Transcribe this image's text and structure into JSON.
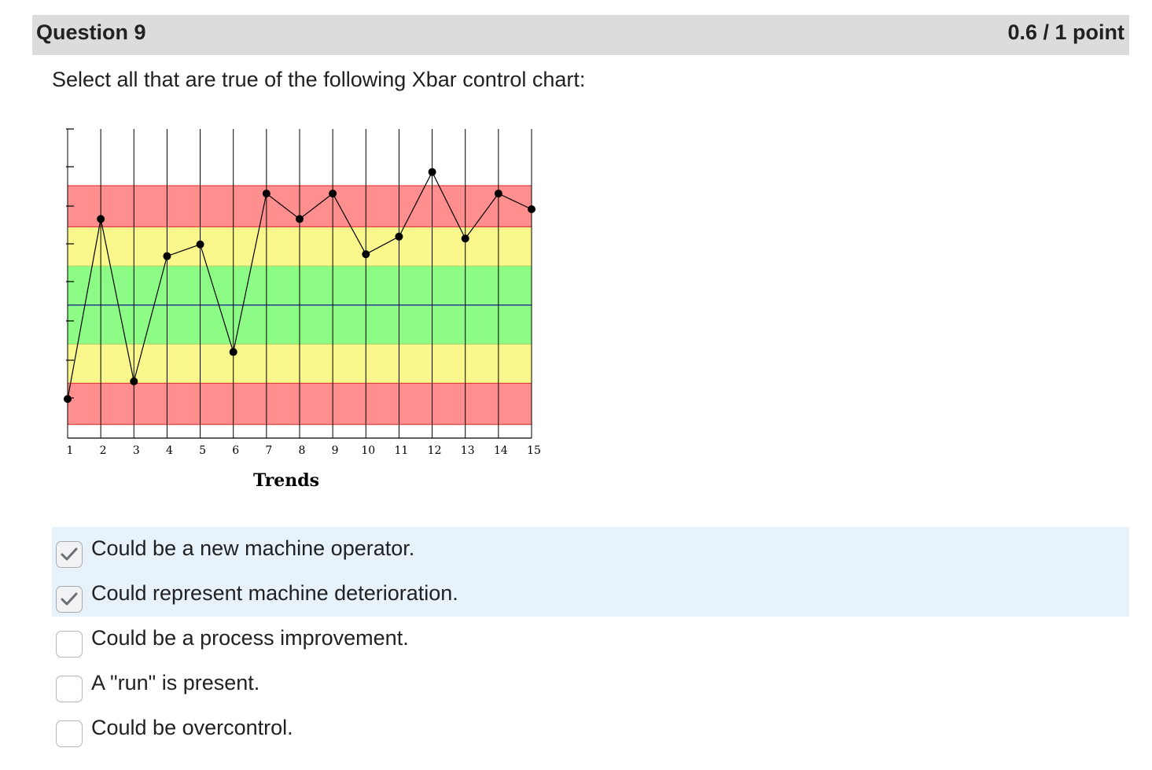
{
  "question": {
    "title": "Question 9",
    "points": "0.6 / 1 point",
    "prompt": "Select all that are true of the following Xbar control chart:"
  },
  "colors": {
    "red_zone": "#ff8e8e",
    "yellow_zone": "#faf88c",
    "green_zone": "#8dfc87",
    "center_line": "#2a3b8f",
    "selected_row": "#e8f2fb",
    "header_bg": "#dcdcdc"
  },
  "chart_data": {
    "type": "line",
    "xlabel": "Trends",
    "categories": [
      "1",
      "2",
      "3",
      "4",
      "5",
      "6",
      "7",
      "8",
      "9",
      "10",
      "11",
      "12",
      "13",
      "14",
      "15"
    ],
    "zones": {
      "center": 0,
      "sigma_1": 1,
      "sigma_2": 2,
      "sigma_3": 3.05
    },
    "ylim": [
      -3.4,
      4.5
    ],
    "values": [
      -2.4,
      2.2,
      -1.95,
      1.25,
      1.55,
      -1.2,
      2.85,
      2.2,
      2.85,
      1.3,
      1.75,
      3.4,
      1.7,
      2.85,
      2.45
    ],
    "grid": "vertical"
  },
  "answers": [
    {
      "label": "Could be a new machine operator.",
      "checked": true
    },
    {
      "label": "Could represent machine deterioration.",
      "checked": true
    },
    {
      "label": "Could be a process improvement.",
      "checked": false
    },
    {
      "label": "A \"run\" is present.",
      "checked": false
    },
    {
      "label": "Could be overcontrol.",
      "checked": false
    }
  ]
}
